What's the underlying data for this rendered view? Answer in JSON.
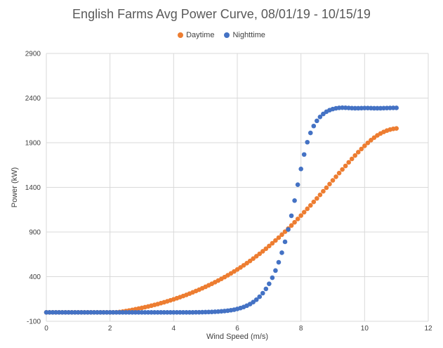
{
  "chart_data": {
    "type": "scatter",
    "title": "English Farms Avg Power Curve, 08/01/19 - 10/15/19",
    "xlabel": "Wind Speed (m/s)",
    "ylabel": "Power (kW)",
    "xlim": [
      0,
      12
    ],
    "ylim": [
      -100,
      2900
    ],
    "x_ticks": [
      0,
      2,
      4,
      6,
      8,
      10,
      12
    ],
    "y_ticks": [
      -100,
      400,
      900,
      1400,
      1900,
      2400,
      2900
    ],
    "grid": true,
    "legend_position": "top",
    "series": [
      {
        "name": "Daytime",
        "color": "#ED7D31",
        "points": [
          [
            0,
            0
          ],
          [
            0.1,
            0
          ],
          [
            0.2,
            0
          ],
          [
            0.3,
            0
          ],
          [
            0.4,
            0
          ],
          [
            0.5,
            0
          ],
          [
            0.6,
            0
          ],
          [
            0.7,
            0
          ],
          [
            0.8,
            0
          ],
          [
            0.9,
            0
          ],
          [
            1.0,
            0
          ],
          [
            1.1,
            0
          ],
          [
            1.2,
            0
          ],
          [
            1.3,
            0
          ],
          [
            1.4,
            0
          ],
          [
            1.5,
            0
          ],
          [
            1.6,
            0
          ],
          [
            1.7,
            0
          ],
          [
            1.8,
            0
          ],
          [
            1.9,
            0
          ],
          [
            2.0,
            0
          ],
          [
            2.1,
            0
          ],
          [
            2.2,
            1
          ],
          [
            2.3,
            4
          ],
          [
            2.4,
            9
          ],
          [
            2.5,
            15
          ],
          [
            2.6,
            21
          ],
          [
            2.7,
            28
          ],
          [
            2.8,
            35
          ],
          [
            2.9,
            42
          ],
          [
            3.0,
            50
          ],
          [
            3.1,
            58
          ],
          [
            3.2,
            66
          ],
          [
            3.3,
            75
          ],
          [
            3.4,
            84
          ],
          [
            3.5,
            93
          ],
          [
            3.6,
            103
          ],
          [
            3.7,
            113
          ],
          [
            3.8,
            124
          ],
          [
            3.9,
            135
          ],
          [
            4.0,
            146
          ],
          [
            4.1,
            158
          ],
          [
            4.2,
            170
          ],
          [
            4.3,
            183
          ],
          [
            4.4,
            196
          ],
          [
            4.5,
            210
          ],
          [
            4.6,
            224
          ],
          [
            4.7,
            239
          ],
          [
            4.8,
            254
          ],
          [
            4.9,
            270
          ],
          [
            5.0,
            286
          ],
          [
            5.1,
            303
          ],
          [
            5.2,
            320
          ],
          [
            5.3,
            338
          ],
          [
            5.4,
            356
          ],
          [
            5.5,
            375
          ],
          [
            5.6,
            395
          ],
          [
            5.7,
            415
          ],
          [
            5.8,
            436
          ],
          [
            5.9,
            458
          ],
          [
            6.0,
            480
          ],
          [
            6.1,
            503
          ],
          [
            6.2,
            527
          ],
          [
            6.3,
            551
          ],
          [
            6.4,
            576
          ],
          [
            6.5,
            602
          ],
          [
            6.6,
            629
          ],
          [
            6.7,
            656
          ],
          [
            6.8,
            684
          ],
          [
            6.9,
            713
          ],
          [
            7.0,
            743
          ],
          [
            7.1,
            774
          ],
          [
            7.2,
            805
          ],
          [
            7.3,
            837
          ],
          [
            7.4,
            870
          ],
          [
            7.5,
            904
          ],
          [
            7.6,
            938
          ],
          [
            7.7,
            973
          ],
          [
            7.8,
            1009
          ],
          [
            7.9,
            1046
          ],
          [
            8.0,
            1084
          ],
          [
            8.1,
            1122
          ],
          [
            8.2,
            1160
          ],
          [
            8.3,
            1198
          ],
          [
            8.4,
            1237
          ],
          [
            8.5,
            1276
          ],
          [
            8.6,
            1316
          ],
          [
            8.7,
            1356
          ],
          [
            8.8,
            1396
          ],
          [
            8.9,
            1437
          ],
          [
            9.0,
            1478
          ],
          [
            9.1,
            1519
          ],
          [
            9.2,
            1560
          ],
          [
            9.3,
            1600
          ],
          [
            9.4,
            1640
          ],
          [
            9.5,
            1680
          ],
          [
            9.6,
            1719
          ],
          [
            9.7,
            1757
          ],
          [
            9.8,
            1794
          ],
          [
            9.9,
            1830
          ],
          [
            10.0,
            1865
          ],
          [
            10.1,
            1898
          ],
          [
            10.2,
            1929
          ],
          [
            10.3,
            1957
          ],
          [
            10.4,
            1982
          ],
          [
            10.5,
            2003
          ],
          [
            10.6,
            2021
          ],
          [
            10.7,
            2036
          ],
          [
            10.8,
            2047
          ],
          [
            10.9,
            2055
          ],
          [
            11.0,
            2060
          ]
        ]
      },
      {
        "name": "Nighttime",
        "color": "#4472C4",
        "points": [
          [
            0,
            0
          ],
          [
            0.1,
            0
          ],
          [
            0.2,
            0
          ],
          [
            0.3,
            0
          ],
          [
            0.4,
            0
          ],
          [
            0.5,
            0
          ],
          [
            0.6,
            0
          ],
          [
            0.7,
            0
          ],
          [
            0.8,
            0
          ],
          [
            0.9,
            0
          ],
          [
            1.0,
            0
          ],
          [
            1.1,
            0
          ],
          [
            1.2,
            0
          ],
          [
            1.3,
            0
          ],
          [
            1.4,
            0
          ],
          [
            1.5,
            0
          ],
          [
            1.6,
            0
          ],
          [
            1.7,
            0
          ],
          [
            1.8,
            0
          ],
          [
            1.9,
            0
          ],
          [
            2.0,
            0
          ],
          [
            2.1,
            0
          ],
          [
            2.2,
            0
          ],
          [
            2.3,
            0
          ],
          [
            2.4,
            0
          ],
          [
            2.5,
            0
          ],
          [
            2.6,
            0
          ],
          [
            2.7,
            0
          ],
          [
            2.8,
            0
          ],
          [
            2.9,
            0
          ],
          [
            3.0,
            0
          ],
          [
            3.1,
            0
          ],
          [
            3.2,
            0
          ],
          [
            3.3,
            0
          ],
          [
            3.4,
            0
          ],
          [
            3.5,
            0
          ],
          [
            3.6,
            0
          ],
          [
            3.7,
            0
          ],
          [
            3.8,
            0
          ],
          [
            3.9,
            0
          ],
          [
            4.0,
            0
          ],
          [
            4.1,
            0
          ],
          [
            4.2,
            0
          ],
          [
            4.3,
            0
          ],
          [
            4.4,
            0
          ],
          [
            4.5,
            0
          ],
          [
            4.6,
            0
          ],
          [
            4.7,
            1
          ],
          [
            4.8,
            1
          ],
          [
            4.9,
            2
          ],
          [
            5.0,
            3
          ],
          [
            5.1,
            4
          ],
          [
            5.2,
            5
          ],
          [
            5.3,
            7
          ],
          [
            5.4,
            9
          ],
          [
            5.5,
            12
          ],
          [
            5.6,
            15
          ],
          [
            5.7,
            19
          ],
          [
            5.8,
            24
          ],
          [
            5.9,
            30
          ],
          [
            6.0,
            38
          ],
          [
            6.1,
            48
          ],
          [
            6.2,
            60
          ],
          [
            6.3,
            75
          ],
          [
            6.4,
            93
          ],
          [
            6.5,
            115
          ],
          [
            6.6,
            142
          ],
          [
            6.7,
            175
          ],
          [
            6.8,
            215
          ],
          [
            6.9,
            263
          ],
          [
            7.0,
            320
          ],
          [
            7.1,
            388
          ],
          [
            7.2,
            468
          ],
          [
            7.3,
            561
          ],
          [
            7.4,
            668
          ],
          [
            7.5,
            790
          ],
          [
            7.6,
            928
          ],
          [
            7.7,
            1082
          ],
          [
            7.8,
            1252
          ],
          [
            7.9,
            1430
          ],
          [
            8.0,
            1606
          ],
          [
            8.1,
            1768
          ],
          [
            8.2,
            1906
          ],
          [
            8.3,
            2010
          ],
          [
            8.4,
            2087
          ],
          [
            8.5,
            2145
          ],
          [
            8.6,
            2189
          ],
          [
            8.7,
            2222
          ],
          [
            8.8,
            2247
          ],
          [
            8.9,
            2265
          ],
          [
            9.0,
            2277
          ],
          [
            9.1,
            2285
          ],
          [
            9.2,
            2290
          ],
          [
            9.3,
            2292
          ],
          [
            9.4,
            2291
          ],
          [
            9.5,
            2289
          ],
          [
            9.6,
            2287
          ],
          [
            9.7,
            2286
          ],
          [
            9.8,
            2286
          ],
          [
            9.9,
            2287
          ],
          [
            10.0,
            2288
          ],
          [
            10.1,
            2288
          ],
          [
            10.2,
            2287
          ],
          [
            10.3,
            2286
          ],
          [
            10.4,
            2286
          ],
          [
            10.5,
            2286
          ],
          [
            10.6,
            2287
          ],
          [
            10.7,
            2288
          ],
          [
            10.8,
            2289
          ],
          [
            10.9,
            2290
          ],
          [
            11.0,
            2290
          ]
        ]
      }
    ]
  }
}
